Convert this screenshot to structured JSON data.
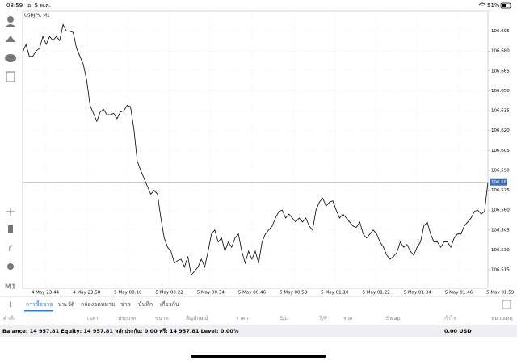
{
  "status_bar": {
    "time": "08:59",
    "date": "อ. 5 พ.ค.",
    "battery": "51%"
  },
  "side_toolbar": {
    "timeframe": "M1"
  },
  "chart": {
    "type": "line",
    "symbol": "USDJPY, M1",
    "color": "#000000",
    "grid": true,
    "x_labels": [
      "4 May 23:44",
      "4 May 23:58",
      "5 May 00:10",
      "5 May 00:22",
      "5 May 00:34",
      "5 May 00:46",
      "5 May 00:58",
      "5 May 01:10",
      "5 May 01:22",
      "5 May 01:34",
      "5 May 01:46",
      "5 May 01:59"
    ],
    "ylim": [
      106.501,
      106.71
    ],
    "yticks": [
      106.695,
      {
        "value": 106.68,
        "label": "106.680"
      },
      106.665,
      {
        "value": 106.65,
        "label": "106.650"
      },
      106.635,
      {
        "value": 106.62,
        "label": "106.620"
      },
      106.605,
      {
        "value": 106.59,
        "label": "106.590"
      },
      106.575,
      {
        "value": 106.56,
        "label": "106.560"
      },
      106.545,
      {
        "value": 106.53,
        "label": "106.530"
      },
      106.515
    ],
    "current_price": 106.581,
    "values": [
      106.679,
      106.685,
      106.676,
      106.676,
      106.68,
      106.682,
      106.691,
      106.685,
      106.691,
      106.688,
      106.691,
      106.688,
      106.7,
      106.695,
      106.695,
      106.694,
      106.682,
      106.676,
      106.67,
      106.658,
      106.639,
      106.633,
      106.627,
      106.634,
      106.636,
      106.632,
      106.632,
      106.633,
      106.629,
      106.634,
      106.635,
      106.639,
      106.638,
      106.621,
      106.597,
      106.59,
      106.584,
      106.578,
      106.572,
      106.575,
      106.572,
      106.554,
      106.539,
      106.532,
      106.529,
      106.52,
      106.522,
      106.523,
      106.517,
      106.525,
      106.511,
      106.514,
      106.517,
      106.523,
      106.517,
      106.529,
      106.542,
      106.545,
      106.536,
      106.539,
      106.529,
      106.536,
      106.532,
      106.539,
      106.542,
      106.529,
      106.52,
      106.529,
      106.523,
      106.529,
      106.52,
      106.536,
      106.542,
      106.545,
      106.548,
      106.554,
      106.559,
      106.56,
      106.554,
      106.557,
      106.554,
      106.551,
      106.554,
      106.551,
      106.554,
      106.548,
      106.545,
      106.56,
      106.566,
      106.569,
      106.563,
      106.566,
      106.567,
      106.56,
      106.554,
      106.557,
      106.554,
      106.551,
      106.548,
      106.547,
      106.551,
      106.542,
      106.539,
      106.542,
      106.545,
      106.542,
      106.536,
      106.532,
      106.526,
      106.523,
      106.525,
      106.528,
      106.536,
      106.532,
      106.534,
      106.529,
      106.526,
      106.532,
      106.536,
      106.548,
      106.551,
      106.542,
      106.536,
      106.536,
      106.532,
      106.536,
      106.536,
      106.532,
      106.539,
      106.542,
      106.542,
      106.548,
      106.551,
      106.554,
      106.559,
      106.56,
      106.557,
      106.559,
      106.581
    ]
  },
  "tabs": [
    "การซื้อขาย",
    "ประวัติ",
    "กล่องจดหมาย",
    "ข่าว",
    "บันทึก",
    "เกี่ยวกับ"
  ],
  "columns": [
    "คำสั่ง",
    "เวลา",
    "ประเภท",
    "ขนาด",
    "สัญลักษณ์",
    "ราคา",
    "S/L",
    "T/P",
    "ราคา",
    "Swap",
    "กำไร",
    "หมายเหตุ"
  ],
  "balance": {
    "text": "Balance: 14 957.81 Equity: 14 957.81 หลักประกัน: 0.00 ฟรี: 14 957.81 Level: 0.00%",
    "total": "0.00  USD"
  }
}
